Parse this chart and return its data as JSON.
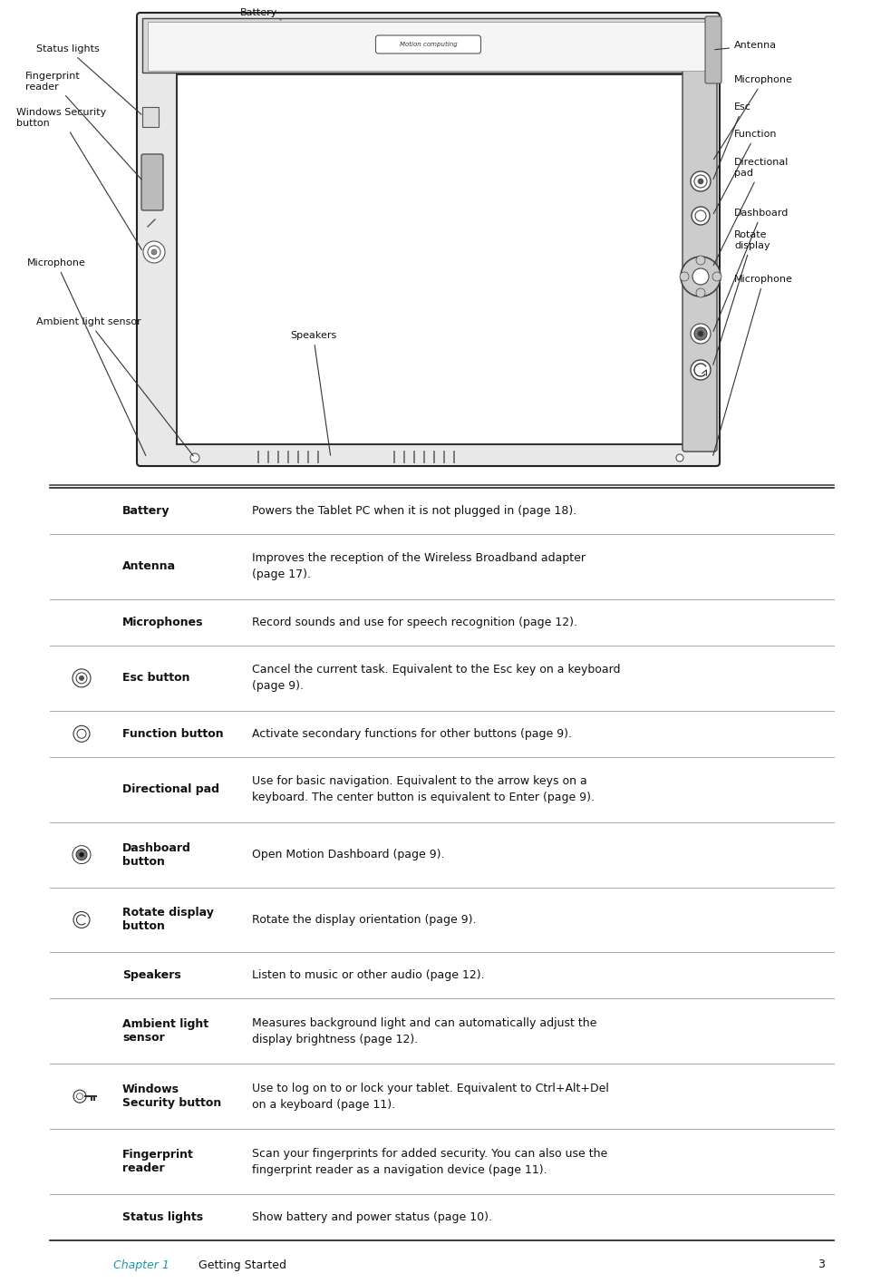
{
  "bg_color": "#ffffff",
  "title_chapter": "Chapter 1",
  "title_chapter_color": "#2196a8",
  "table_rows": [
    {
      "icon": null,
      "label": "Battery",
      "desc": "Powers the Tablet PC when it is not plugged in (page 18)."
    },
    {
      "icon": null,
      "label": "Antenna",
      "desc": "Improves the reception of the Wireless Broadband adapter\n(page 17)."
    },
    {
      "icon": null,
      "label": "Microphones",
      "desc": "Record sounds and use for speech recognition (page 12)."
    },
    {
      "icon": "esc",
      "label": "Esc button",
      "desc": "Cancel the current task. Equivalent to the Esc key on a keyboard\n(page 9)."
    },
    {
      "icon": "func",
      "label": "Function button",
      "desc": "Activate secondary functions for other buttons (page 9)."
    },
    {
      "icon": null,
      "label": "Directional pad",
      "desc": "Use for basic navigation. Equivalent to the arrow keys on a\nkeyboard. The center button is equivalent to Enter (page 9)."
    },
    {
      "icon": "dashboard",
      "label": "Dashboard\nbutton",
      "desc": "Open Motion Dashboard (page 9)."
    },
    {
      "icon": "rotate",
      "label": "Rotate display\nbutton",
      "desc": "Rotate the display orientation (page 9)."
    },
    {
      "icon": null,
      "label": "Speakers",
      "desc": "Listen to music or other audio (page 12)."
    },
    {
      "icon": null,
      "label": "Ambient light\nsensor",
      "desc": "Measures background light and can automatically adjust the\ndisplay brightness (page 12)."
    },
    {
      "icon": "key",
      "label": "Windows\nSecurity button",
      "desc": "Use to log on to or lock your tablet. Equivalent to Ctrl+Alt+Del\non a keyboard (page 11)."
    },
    {
      "icon": null,
      "label": "Fingerprint\nreader",
      "desc": "Scan your fingerprints for added security. You can also use the\nfingerprint reader as a navigation device (page 11)."
    },
    {
      "icon": null,
      "label": "Status lights",
      "desc": "Show battery and power status (page 10)."
    }
  ]
}
